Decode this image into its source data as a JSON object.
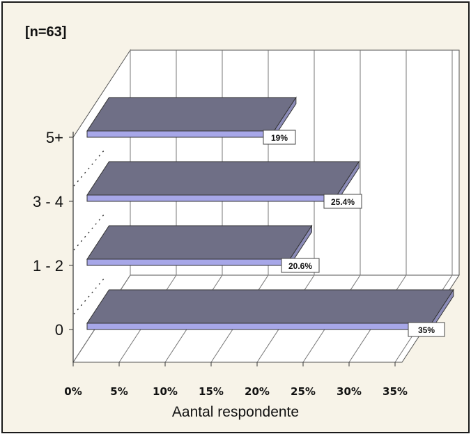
{
  "chart_data": {
    "type": "bar",
    "orientation": "horizontal",
    "note": "[n=63]",
    "categories": [
      "0",
      "1 - 2",
      "3 - 4",
      "5+"
    ],
    "values": [
      35,
      20.6,
      25.4,
      19
    ],
    "data_labels": [
      "35%",
      "20.6%",
      "25.4%",
      "19%"
    ],
    "xlabel": "Aantal respondente",
    "xticks": [
      "0%",
      "5%",
      "10%",
      "15%",
      "20%",
      "25%",
      "30%",
      "35%"
    ],
    "xlim": [
      0,
      35
    ],
    "grid": true,
    "legend": "none",
    "style": "3d",
    "colors": {
      "bar_top": "#6f6f86",
      "bar_front": "#a7a7e8",
      "bar_side": "#8c8cb8",
      "background": "#f7f3e8"
    }
  }
}
